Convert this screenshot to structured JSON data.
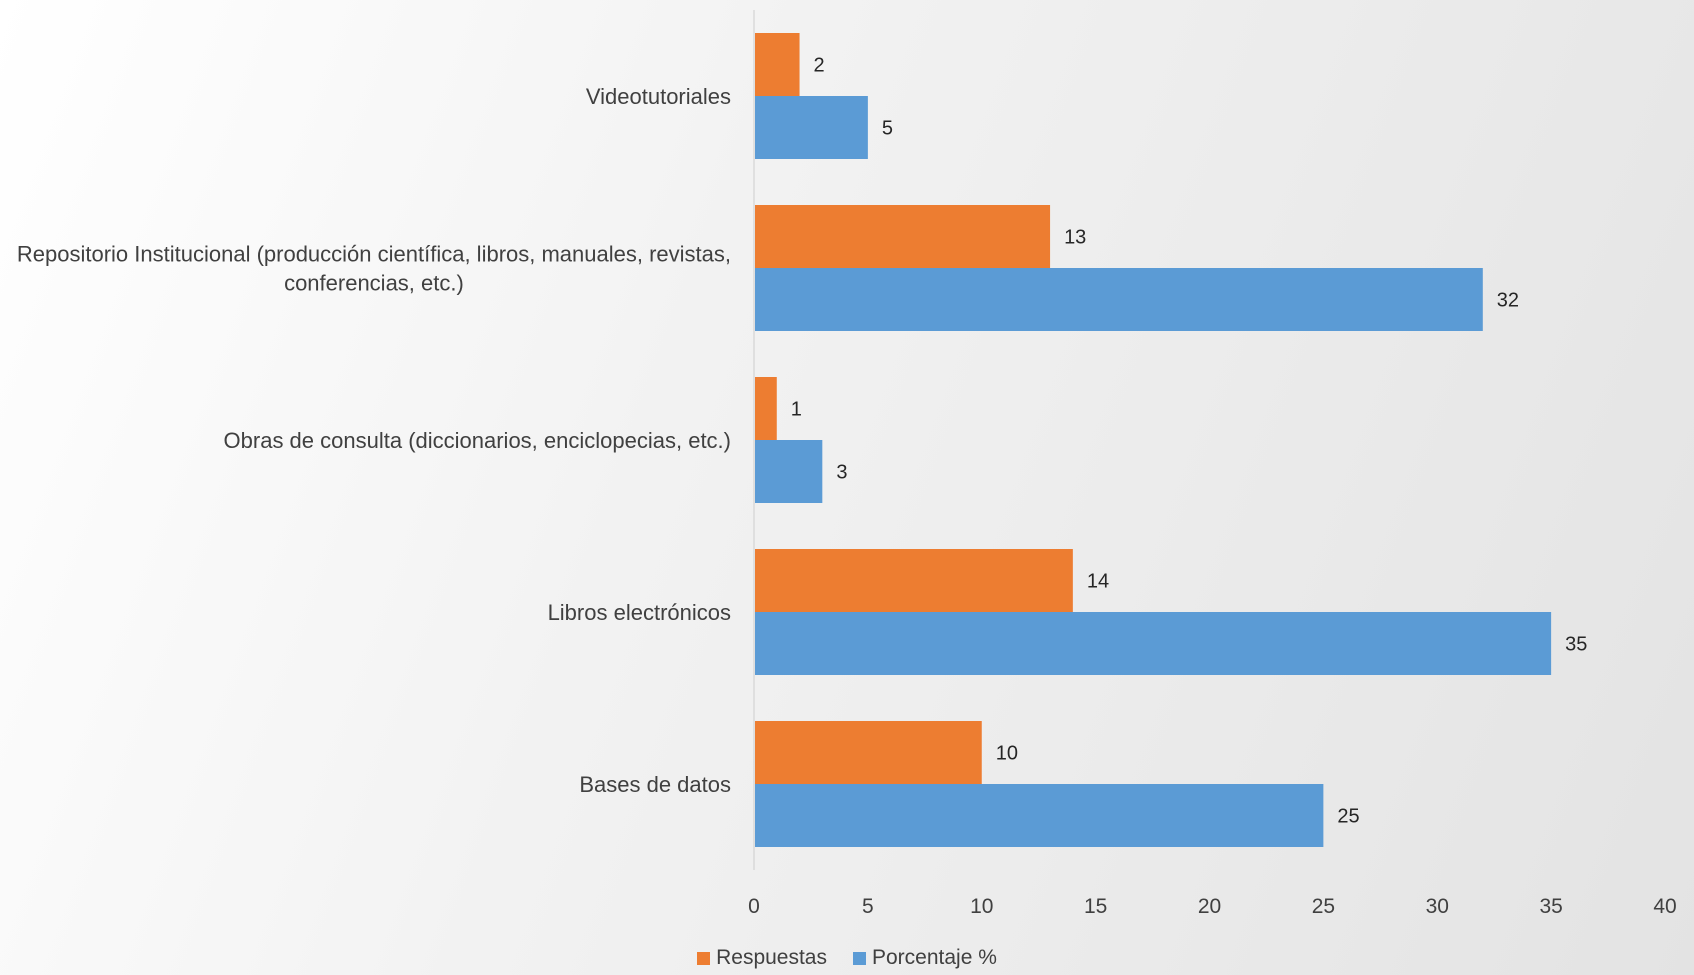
{
  "chart_data": {
    "type": "bar",
    "orientation": "horizontal",
    "categories": [
      "Bases de datos",
      "Libros electrónicos",
      "Obras de consulta (diccionarios, enciclopecias, etc.)",
      "Repositorio Institucional (producción científica, libros, manuales, revistas, conferencias, etc.)",
      "Videotutoriales"
    ],
    "series": [
      {
        "name": "Respuestas",
        "color": "#ED7D31",
        "values": [
          10,
          14,
          1,
          13,
          2
        ]
      },
      {
        "name": "Porcentaje %",
        "color": "#5B9BD5",
        "values": [
          25,
          35,
          3,
          32,
          5
        ]
      }
    ],
    "xlim": [
      0,
      40
    ],
    "xticks": [
      0,
      5,
      10,
      15,
      20,
      25,
      30,
      35,
      40
    ],
    "data_labels": true,
    "legend_position": "bottom",
    "grid": false,
    "title": "",
    "xlabel": "",
    "ylabel": ""
  }
}
